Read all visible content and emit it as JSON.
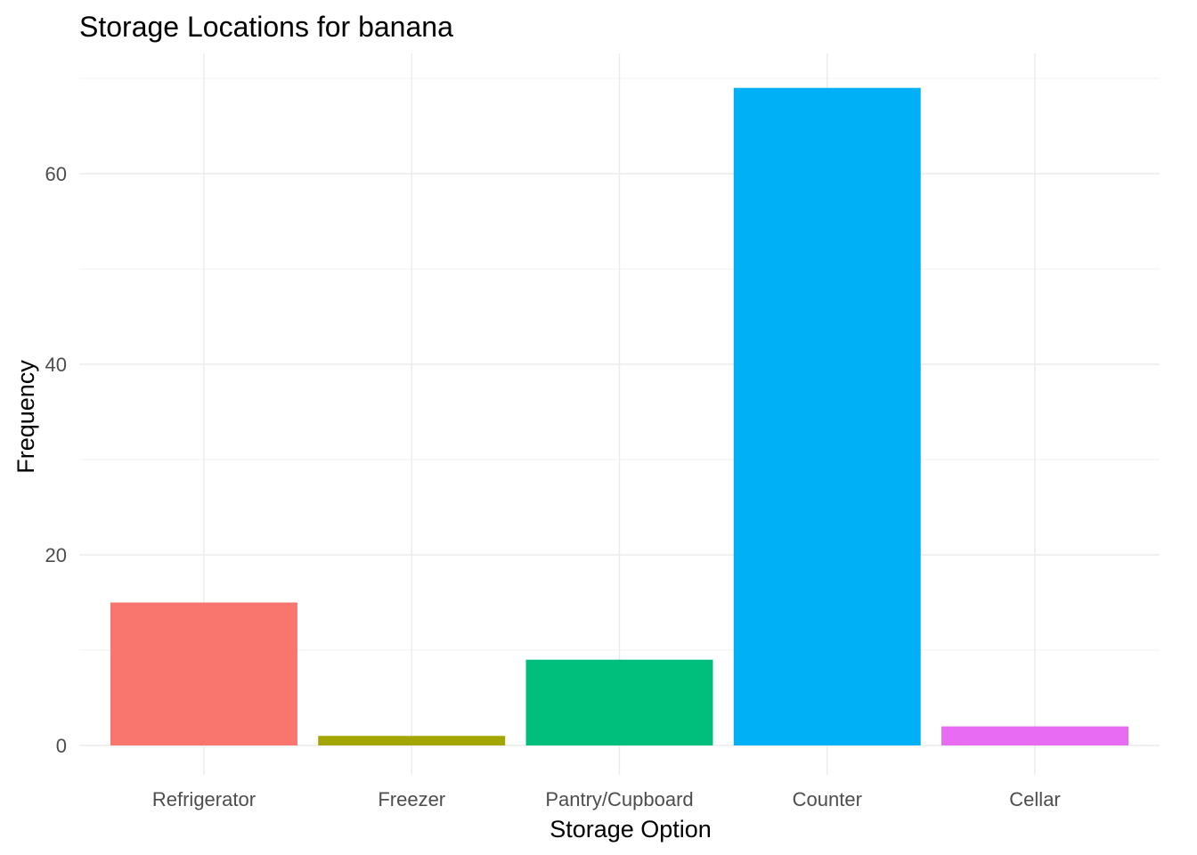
{
  "chart_data": {
    "type": "bar",
    "title": "Storage Locations for banana",
    "xlabel": "Storage Option",
    "ylabel": "Frequency",
    "categories": [
      "Refrigerator",
      "Freezer",
      "Pantry/Cupboard",
      "Counter",
      "Cellar"
    ],
    "values": [
      15,
      1,
      9,
      69,
      2
    ],
    "colors": [
      "#F8766D",
      "#A3A500",
      "#00BF7D",
      "#00B0F6",
      "#E76BF3"
    ],
    "ylim": [
      0,
      70
    ],
    "yticks": [
      0,
      20,
      40,
      60
    ],
    "ytick_labels": [
      "0",
      "20",
      "40",
      "60"
    ],
    "grid": true,
    "legend": "none"
  }
}
